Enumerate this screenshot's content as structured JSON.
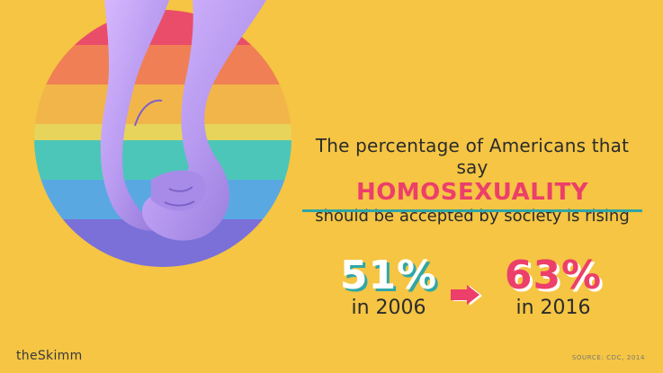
{
  "headline": {
    "line1": "The percentage of Americans that say",
    "line2": "HOMOSEXUALITY",
    "line3": "should be accepted by society is rising"
  },
  "stats": [
    {
      "percent": "51%",
      "year": "in 2006"
    },
    {
      "percent": "63%",
      "year": "in 2016"
    }
  ],
  "logo": "theSkimm",
  "source": "SOURCE: CDC, 2014",
  "colors": {
    "background": "#f5c543",
    "accent_pink": "#ec3f6a",
    "accent_teal": "#2fa7a6",
    "rainbow": [
      "#ea4d6a",
      "#f07f55",
      "#f2b54a",
      "#e7d45a",
      "#4cc6b9",
      "#5aa8e2",
      "#7a70d8"
    ]
  },
  "image": {
    "subject": "two-hands-holding-icon"
  }
}
